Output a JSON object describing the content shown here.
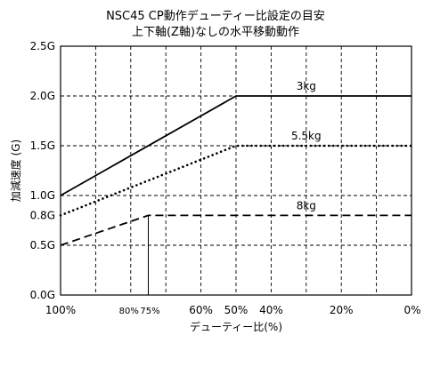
{
  "chart_data": {
    "type": "line",
    "title_lines": [
      "NSC45 CP動作デューティー比設定の目安",
      "上下軸(Z軸)なしの水平移動動作"
    ],
    "xlabel": "デューティー比(%)",
    "ylabel": "加減速度 (G)",
    "x_reversed": true,
    "xlim": [
      100,
      0
    ],
    "ylim": [
      0,
      2.5
    ],
    "grid": true,
    "grid_style": "dashed",
    "x_gridlines": [
      90,
      80,
      70,
      60,
      50,
      40,
      30,
      20,
      10
    ],
    "y_gridlines": [
      0.5,
      1.0,
      1.5,
      2.0
    ],
    "x_ticks": [
      {
        "value": 100,
        "label": "100%"
      },
      {
        "value": 80,
        "label": "80%"
      },
      {
        "value": 75,
        "label": "75%"
      },
      {
        "value": 60,
        "label": "60%"
      },
      {
        "value": 50,
        "label": "50%"
      },
      {
        "value": 40,
        "label": "40%"
      },
      {
        "value": 20,
        "label": "20%"
      },
      {
        "value": 0,
        "label": "0%"
      }
    ],
    "y_ticks": [
      {
        "value": 0,
        "label": "0.0G"
      },
      {
        "value": 0.5,
        "label": "0.5G"
      },
      {
        "value": 0.8,
        "label": "0.8G"
      },
      {
        "value": 1.0,
        "label": "1.0G"
      },
      {
        "value": 1.5,
        "label": "1.5G"
      },
      {
        "value": 2.0,
        "label": "2.0G"
      },
      {
        "value": 2.5,
        "label": "2.5G"
      }
    ],
    "series": [
      {
        "name": "3kg",
        "style": "solid",
        "color": "#000000",
        "points": [
          [
            100,
            1.0
          ],
          [
            50,
            2.0
          ],
          [
            0,
            2.0
          ]
        ],
        "label_at": [
          30,
          2.0
        ]
      },
      {
        "name": "5.5kg",
        "style": "dotted",
        "color": "#000000",
        "points": [
          [
            100,
            0.8
          ],
          [
            50,
            1.5
          ],
          [
            0,
            1.5
          ]
        ],
        "label_at": [
          30,
          1.5
        ]
      },
      {
        "name": "8kg",
        "style": "dashed",
        "color": "#000000",
        "points": [
          [
            100,
            0.5
          ],
          [
            75,
            0.8
          ],
          [
            0,
            0.8
          ]
        ],
        "label_at": [
          30,
          0.8
        ]
      }
    ],
    "marker_line": {
      "x": 75,
      "y_from": 0,
      "y_to": 0.8,
      "color": "#000000"
    }
  }
}
